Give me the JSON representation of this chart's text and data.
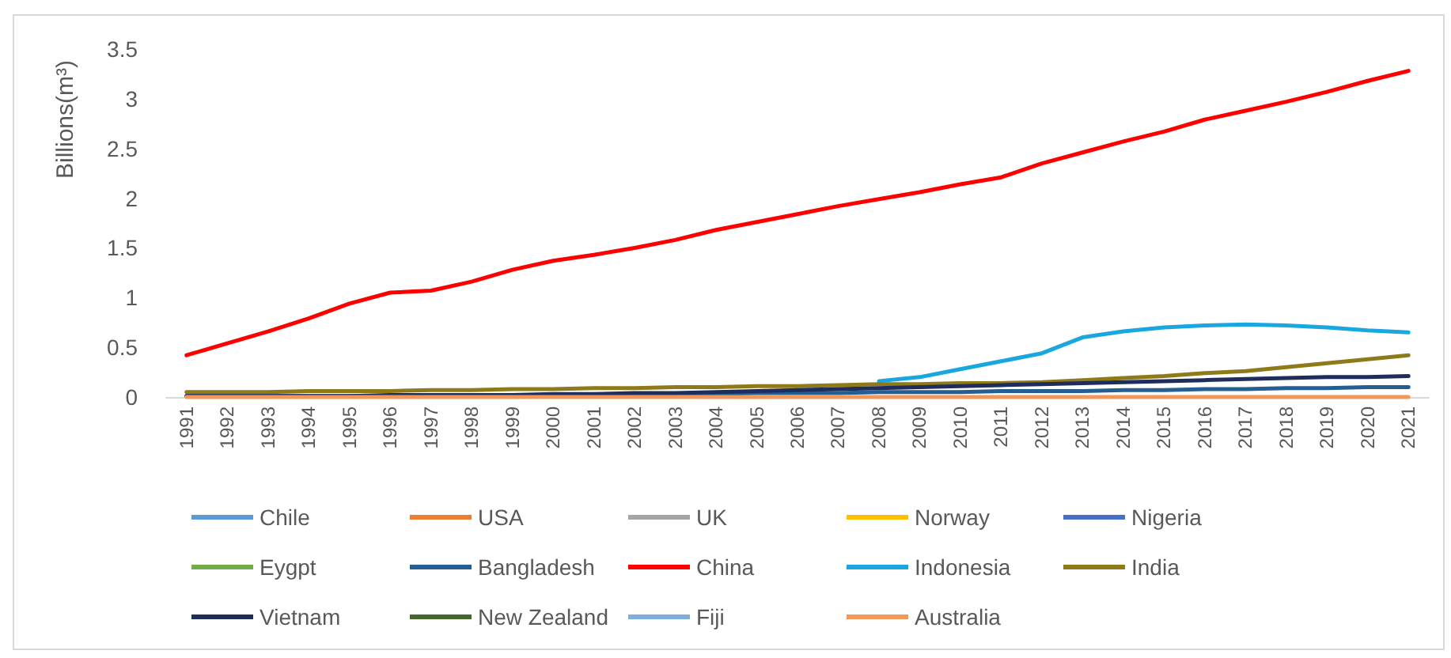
{
  "chart_data": {
    "type": "line",
    "ylabel": "Billions(m³)",
    "categories": [
      "1991",
      "1992",
      "1993",
      "1994",
      "1995",
      "1996",
      "1997",
      "1998",
      "1999",
      "2000",
      "2001",
      "2002",
      "2003",
      "2004",
      "2005",
      "2006",
      "2007",
      "2008",
      "2009",
      "2010",
      "2011",
      "2012",
      "2013",
      "2014",
      "2015",
      "2016",
      "2017",
      "2018",
      "2019",
      "2020",
      "2021"
    ],
    "ylim": [
      0,
      3.5
    ],
    "yticks": [
      0,
      0.5,
      1,
      1.5,
      2,
      2.5,
      3,
      3.5
    ],
    "grid": false,
    "legend": "bottom",
    "marker": "none",
    "line_style": "solid",
    "series": [
      {
        "name": "Chile",
        "color": "#5b9bd5",
        "values": [
          null,
          null,
          null,
          null,
          null,
          null,
          null,
          null,
          null,
          null,
          null,
          null,
          null,
          null,
          null,
          null,
          null,
          null,
          null,
          null,
          null,
          null,
          null,
          null,
          null,
          null,
          null,
          null,
          null,
          null,
          null
        ]
      },
      {
        "name": "USA",
        "color": "#ed7d31",
        "values": [
          null,
          null,
          null,
          null,
          null,
          null,
          null,
          null,
          null,
          null,
          null,
          null,
          null,
          null,
          null,
          null,
          null,
          null,
          null,
          null,
          null,
          null,
          null,
          null,
          null,
          null,
          null,
          null,
          null,
          null,
          null
        ]
      },
      {
        "name": "UK",
        "color": "#a5a5a5",
        "values": [
          null,
          null,
          null,
          null,
          null,
          null,
          null,
          null,
          null,
          null,
          null,
          null,
          null,
          null,
          null,
          null,
          null,
          null,
          null,
          null,
          null,
          null,
          null,
          null,
          null,
          null,
          null,
          null,
          null,
          null,
          null
        ]
      },
      {
        "name": "Norway",
        "color": "#ffc000",
        "values": [
          null,
          null,
          null,
          null,
          null,
          null,
          null,
          null,
          null,
          null,
          null,
          null,
          null,
          null,
          null,
          null,
          null,
          null,
          null,
          null,
          null,
          null,
          null,
          null,
          null,
          null,
          null,
          null,
          null,
          null,
          null
        ]
      },
      {
        "name": "Nigeria",
        "color": "#4472c4",
        "values": [
          null,
          null,
          null,
          null,
          null,
          null,
          null,
          null,
          null,
          null,
          null,
          null,
          null,
          null,
          null,
          null,
          null,
          null,
          null,
          null,
          null,
          null,
          null,
          null,
          null,
          null,
          null,
          null,
          null,
          null,
          null
        ]
      },
      {
        "name": "Eygpt",
        "color": "#70ad47",
        "values": [
          null,
          null,
          null,
          null,
          null,
          null,
          null,
          null,
          null,
          null,
          null,
          null,
          null,
          null,
          null,
          null,
          null,
          null,
          null,
          null,
          null,
          null,
          null,
          null,
          null,
          null,
          null,
          null,
          null,
          null,
          null
        ]
      },
      {
        "name": "Bangladesh",
        "color": "#255e91",
        "values": [
          0.01,
          0.01,
          0.01,
          0.01,
          0.01,
          0.01,
          0.01,
          0.02,
          0.02,
          0.02,
          0.02,
          0.03,
          0.03,
          0.03,
          0.04,
          0.04,
          0.04,
          0.05,
          0.05,
          0.05,
          0.06,
          0.06,
          0.06,
          0.07,
          0.07,
          0.08,
          0.08,
          0.09,
          0.09,
          0.1,
          0.1
        ]
      },
      {
        "name": "China",
        "color": "#ff0000",
        "values": [
          0.42,
          0.54,
          0.66,
          0.79,
          0.94,
          1.05,
          1.07,
          1.16,
          1.28,
          1.37,
          1.43,
          1.5,
          1.58,
          1.68,
          1.76,
          1.84,
          1.92,
          1.99,
          2.06,
          2.14,
          2.21,
          2.35,
          2.46,
          2.57,
          2.67,
          2.79,
          2.88,
          2.97,
          3.07,
          3.18,
          3.28
        ]
      },
      {
        "name": "Indonesia",
        "color": "#1aa7e0",
        "values": [
          null,
          null,
          null,
          null,
          null,
          null,
          null,
          null,
          null,
          null,
          null,
          null,
          null,
          null,
          null,
          null,
          null,
          0.16,
          0.2,
          0.28,
          0.36,
          0.44,
          0.6,
          0.66,
          0.7,
          0.72,
          0.73,
          0.72,
          0.7,
          0.67,
          0.65
        ]
      },
      {
        "name": "India",
        "color": "#8f7a1a",
        "values": [
          0.05,
          0.05,
          0.05,
          0.06,
          0.06,
          0.06,
          0.07,
          0.07,
          0.08,
          0.08,
          0.09,
          0.09,
          0.1,
          0.1,
          0.11,
          0.11,
          0.12,
          0.13,
          0.13,
          0.14,
          0.14,
          0.15,
          0.17,
          0.19,
          0.21,
          0.24,
          0.26,
          0.3,
          0.34,
          0.38,
          0.42
        ]
      },
      {
        "name": "Vietnam",
        "color": "#1f2d5c",
        "values": [
          0.01,
          0.01,
          0.01,
          0.01,
          0.01,
          0.02,
          0.02,
          0.02,
          0.02,
          0.03,
          0.03,
          0.04,
          0.04,
          0.05,
          0.06,
          0.07,
          0.08,
          0.09,
          0.1,
          0.11,
          0.12,
          0.13,
          0.14,
          0.15,
          0.16,
          0.17,
          0.18,
          0.19,
          0.2,
          0.2,
          0.21
        ]
      },
      {
        "name": "New Zealand",
        "color": "#43682b",
        "values": [
          null,
          null,
          null,
          null,
          null,
          null,
          null,
          null,
          null,
          null,
          null,
          null,
          null,
          null,
          null,
          null,
          null,
          null,
          null,
          null,
          null,
          null,
          null,
          null,
          null,
          null,
          null,
          null,
          null,
          null,
          null
        ]
      },
      {
        "name": "Fiji",
        "color": "#7cafdd",
        "values": [
          null,
          null,
          null,
          null,
          null,
          null,
          null,
          null,
          null,
          null,
          null,
          null,
          null,
          null,
          null,
          null,
          null,
          null,
          null,
          null,
          null,
          null,
          null,
          null,
          null,
          null,
          null,
          null,
          null,
          null,
          null
        ]
      },
      {
        "name": "Australia",
        "color": "#f1975a",
        "values": [
          0,
          0,
          0,
          0,
          0,
          0,
          0,
          0,
          0,
          0,
          0,
          0,
          0,
          0,
          0,
          0,
          0,
          0,
          0,
          0,
          0,
          0,
          0,
          0,
          0,
          0,
          0,
          0,
          0,
          0,
          0
        ]
      }
    ]
  }
}
